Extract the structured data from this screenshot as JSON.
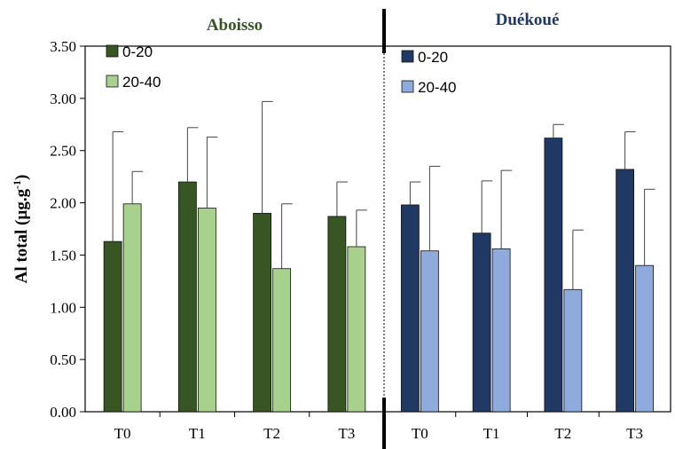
{
  "chart_data": {
    "type": "bar",
    "ylabel_main": "Al total (µg.g",
    "ylabel_sup": "-1",
    "ylabel_end": ")",
    "ylim": [
      0,
      3.5
    ],
    "yticks": [
      "0.00",
      "0.50",
      "1.00",
      "1.50",
      "2.00",
      "2.50",
      "3.00",
      "3.50"
    ],
    "ytick_values": [
      0,
      0.5,
      1.0,
      1.5,
      2.0,
      2.5,
      3.0,
      3.5
    ],
    "grid": false,
    "panels": [
      {
        "title": "Aboisso",
        "title_color": "#375623",
        "categories": [
          "T0",
          "T1",
          "T2",
          "T3"
        ],
        "legend_placement": "top-left",
        "series": [
          {
            "name": "0-20",
            "color": "#375623",
            "values": [
              1.63,
              2.2,
              1.9,
              1.87
            ],
            "errors": [
              1.05,
              0.52,
              1.07,
              0.33
            ]
          },
          {
            "name": "20-40",
            "color": "#a9d18e",
            "values": [
              1.99,
              1.95,
              1.37,
              1.58
            ],
            "errors": [
              0.31,
              0.68,
              0.62,
              0.35
            ]
          }
        ]
      },
      {
        "title": "Duékoué",
        "title_color": "#1f3864",
        "categories": [
          "T0",
          "T1",
          "T2",
          "T3"
        ],
        "legend_placement": "top-left",
        "series": [
          {
            "name": "0-20",
            "color": "#203864",
            "values": [
              1.98,
              1.71,
              2.62,
              2.32
            ],
            "errors": [
              0.22,
              0.5,
              0.13,
              0.36
            ]
          },
          {
            "name": "20-40",
            "color": "#8faadc",
            "values": [
              1.54,
              1.56,
              1.17,
              1.4
            ],
            "errors": [
              0.81,
              0.75,
              0.57,
              0.73
            ]
          }
        ]
      }
    ]
  }
}
